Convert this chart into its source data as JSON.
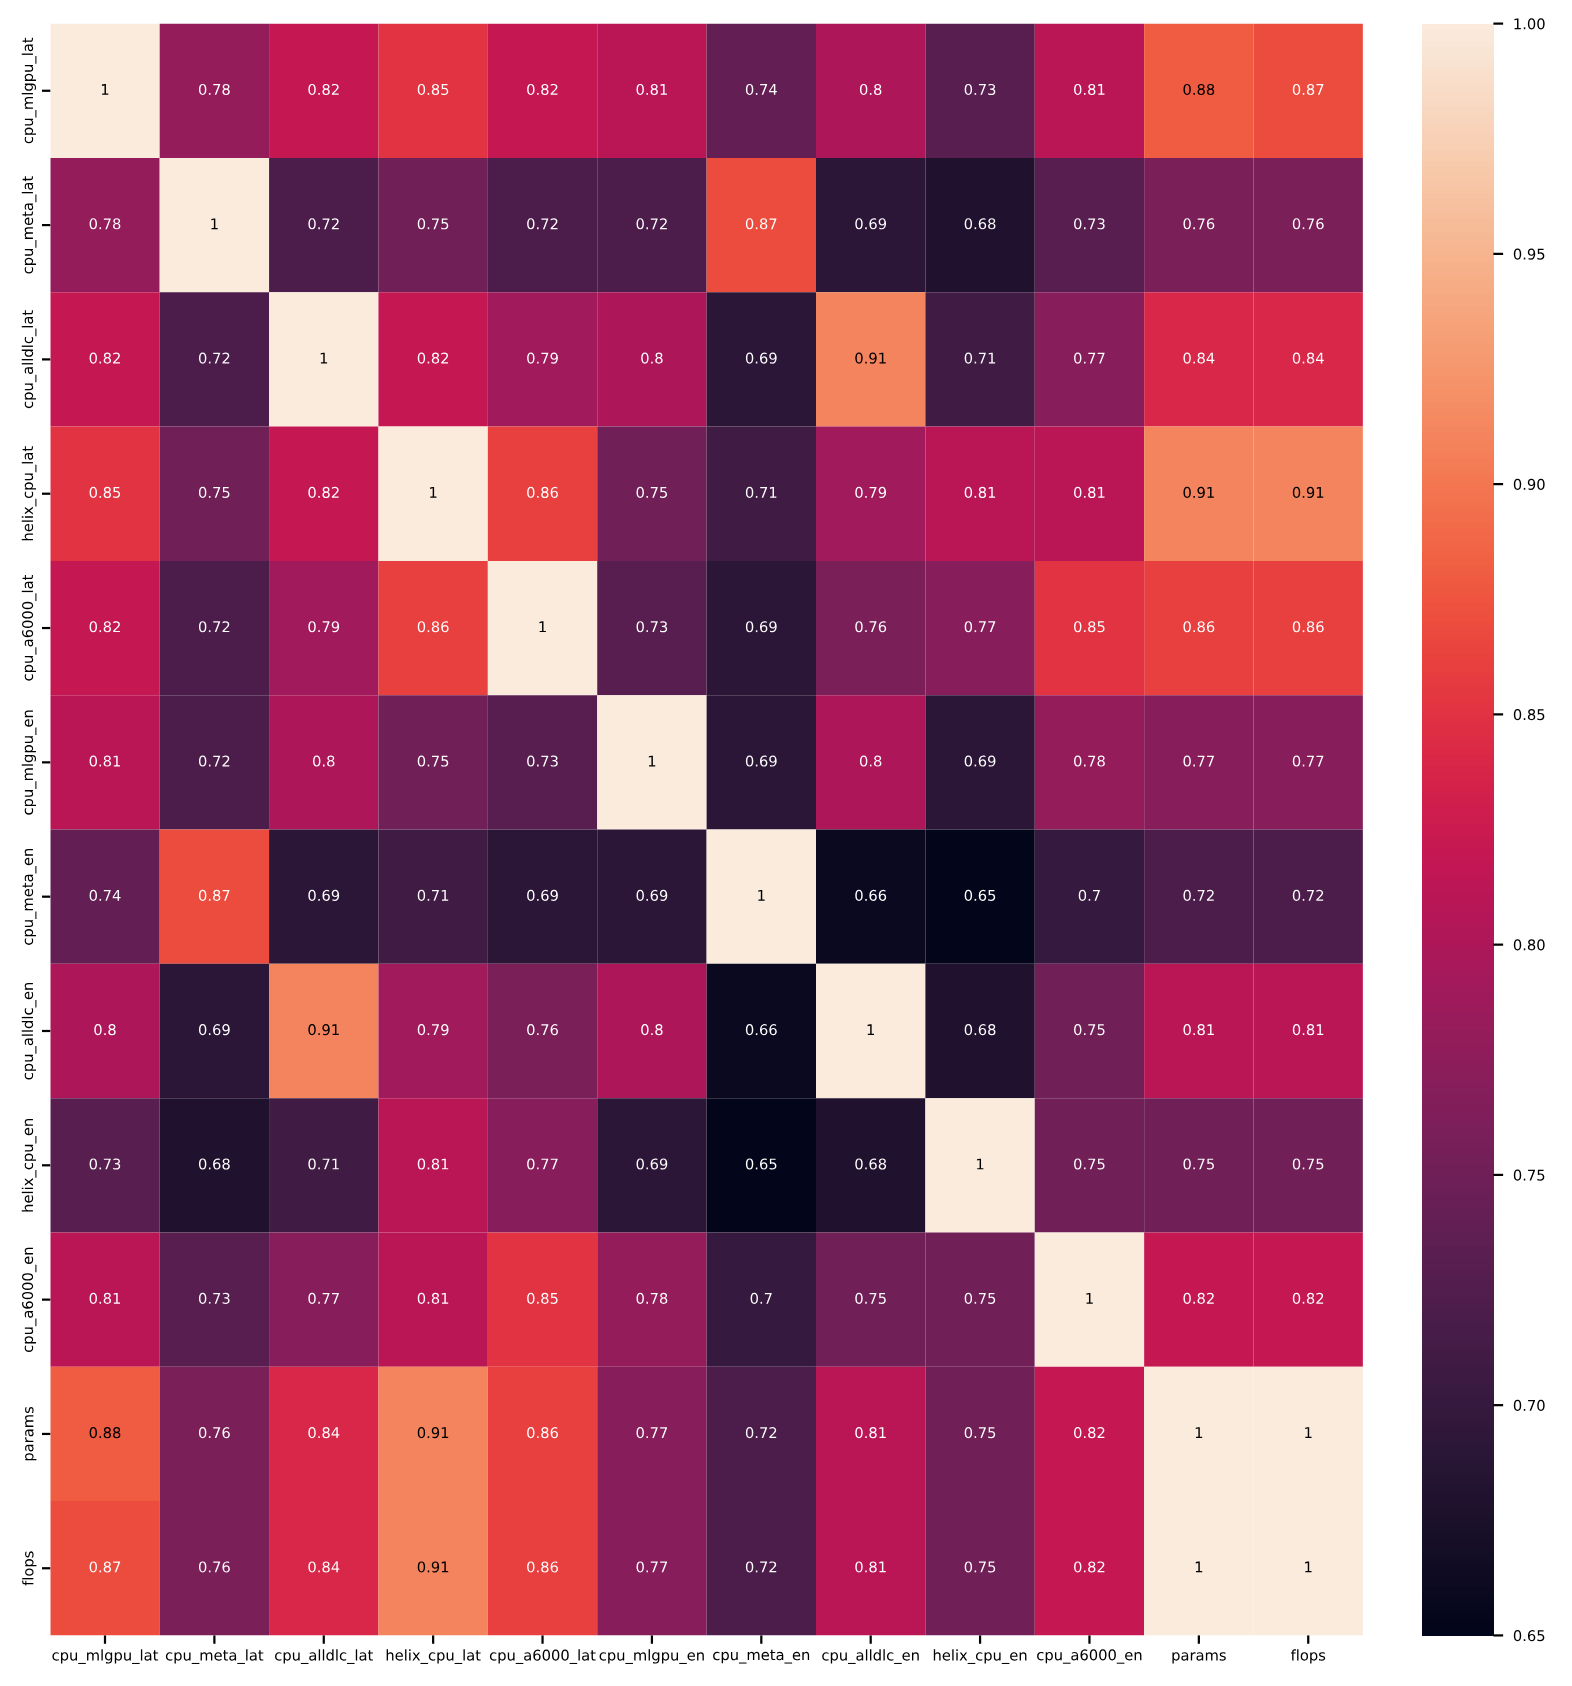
{
  "chart_data": {
    "type": "heatmap",
    "categories": [
      "cpu_mlgpu_lat",
      "cpu_meta_lat",
      "cpu_alldlc_lat",
      "helix_cpu_lat",
      "cpu_a6000_lat",
      "cpu_mlgpu_en",
      "cpu_meta_en",
      "cpu_alldlc_en",
      "helix_cpu_en",
      "cpu_a6000_en",
      "params",
      "flops"
    ],
    "y_categories": [
      "cpu_mlgpu_lat",
      "cpu_meta_lat",
      "cpu_alldlc_lat",
      "helix_cpu_lat",
      "cpu_a6000_lat",
      "cpu_mlgpu_en",
      "cpu_meta_en",
      "cpu_alldlc_en",
      "helix_cpu_en",
      "cpu_a6000_en",
      "params",
      "flops"
    ],
    "cells": [
      [
        1,
        0.78,
        0.82,
        0.85,
        0.82,
        0.81,
        0.74,
        0.8,
        0.73,
        0.81,
        0.88,
        0.87
      ],
      [
        0.78,
        1,
        0.72,
        0.75,
        0.72,
        0.72,
        0.87,
        0.69,
        0.68,
        0.73,
        0.76,
        0.76
      ],
      [
        0.82,
        0.72,
        1,
        0.82,
        0.79,
        0.8,
        0.69,
        0.91,
        0.71,
        0.77,
        0.84,
        0.84
      ],
      [
        0.85,
        0.75,
        0.82,
        1,
        0.86,
        0.75,
        0.71,
        0.79,
        0.81,
        0.81,
        0.91,
        0.91
      ],
      [
        0.82,
        0.72,
        0.79,
        0.86,
        1,
        0.73,
        0.69,
        0.76,
        0.77,
        0.85,
        0.86,
        0.86
      ],
      [
        0.81,
        0.72,
        0.8,
        0.75,
        0.73,
        1,
        0.69,
        0.8,
        0.69,
        0.78,
        0.77,
        0.77
      ],
      [
        0.74,
        0.87,
        0.69,
        0.71,
        0.69,
        0.69,
        1,
        0.66,
        0.65,
        0.7,
        0.72,
        0.72
      ],
      [
        0.8,
        0.69,
        0.91,
        0.79,
        0.76,
        0.8,
        0.66,
        1,
        0.68,
        0.75,
        0.81,
        0.81
      ],
      [
        0.73,
        0.68,
        0.71,
        0.81,
        0.77,
        0.69,
        0.65,
        0.68,
        1,
        0.75,
        0.75,
        0.75
      ],
      [
        0.81,
        0.73,
        0.77,
        0.81,
        0.85,
        0.78,
        0.7,
        0.75,
        0.75,
        1,
        0.82,
        0.82
      ],
      [
        0.88,
        0.76,
        0.84,
        0.91,
        0.86,
        0.77,
        0.72,
        0.81,
        0.75,
        0.82,
        1,
        1
      ],
      [
        0.87,
        0.76,
        0.84,
        0.91,
        0.86,
        0.77,
        0.72,
        0.81,
        0.75,
        0.82,
        1,
        1
      ]
    ],
    "clim": [
      0.65,
      1.0
    ],
    "cticks": [
      {
        "value": 0.65,
        "label": "0.65"
      },
      {
        "value": 0.7,
        "label": "0.70"
      },
      {
        "value": 0.75,
        "label": "0.75"
      },
      {
        "value": 0.8,
        "label": "0.80"
      },
      {
        "value": 0.85,
        "label": "0.85"
      },
      {
        "value": 0.9,
        "label": "0.90"
      },
      {
        "value": 0.95,
        "label": "0.95"
      },
      {
        "value": 1.0,
        "label": "1.00"
      }
    ],
    "data_labels": true
  }
}
